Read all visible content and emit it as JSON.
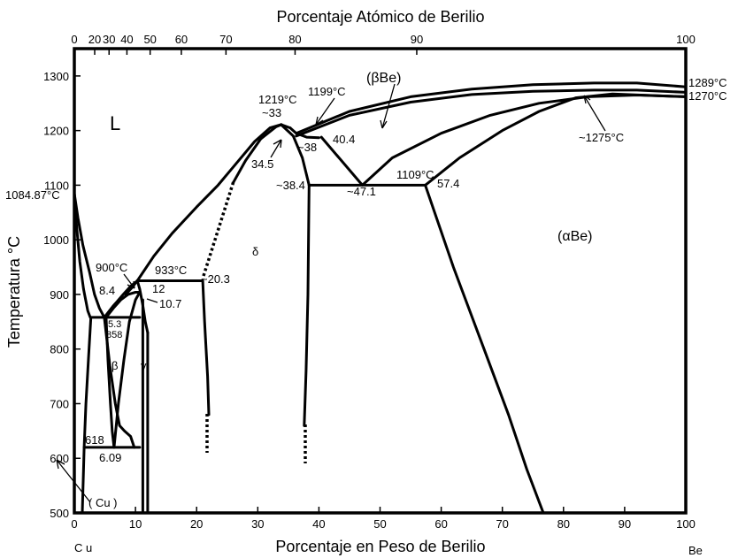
{
  "chart_data": {
    "type": "line",
    "title": "",
    "top_axis": {
      "label": "Porcentaje Atómico de Berilio",
      "ticks": [
        {
          "label": "0",
          "wt": 0
        },
        {
          "label": "20",
          "wt": 3.33
        },
        {
          "label": "30",
          "wt": 5.68
        },
        {
          "label": "40",
          "wt": 8.6
        },
        {
          "label": "50",
          "wt": 12.4
        },
        {
          "label": "60",
          "wt": 17.5
        },
        {
          "label": "70",
          "wt": 24.8
        },
        {
          "label": "80",
          "wt": 36.1
        },
        {
          "label": "90",
          "wt": 56.0
        },
        {
          "label": "100",
          "wt": 100
        }
      ]
    },
    "x_axis": {
      "label": "Porcentaje en Peso de Berilio",
      "range": [
        0,
        100
      ],
      "ticks": [
        "0",
        "10",
        "20",
        "30",
        "40",
        "50",
        "60",
        "70",
        "80",
        "90",
        "100"
      ],
      "left_end": "C u",
      "right_end": "Be"
    },
    "y_axis": {
      "label": "Temperatura °C",
      "range": [
        500,
        1350
      ],
      "ticks": [
        "500",
        "600",
        "700",
        "800",
        "900",
        "1000",
        "1100",
        "1200",
        "1300"
      ]
    },
    "series": [
      {
        "x": [
          0,
          0.6,
          1.4,
          2.5,
          3.3,
          4.1,
          4.9
        ],
        "y": [
          1084.87,
          1040,
          990,
          940,
          900,
          875,
          858
        ]
      },
      {
        "x": [
          0,
          0.4,
          0.9,
          1.5,
          2.2,
          2.6
        ],
        "y": [
          1084.87,
          1020,
          960,
          910,
          870,
          858
        ]
      },
      {
        "x": [
          2.7,
          2.3,
          1.9,
          1.6,
          1.3
        ],
        "y": [
          858,
          780,
          700,
          620,
          500
        ]
      },
      {
        "x": [
          4.9,
          5.8,
          6.7,
          7.4,
          8.2,
          9.2,
          9.8
        ],
        "y": [
          858,
          770,
          700,
          660,
          650,
          640,
          620
        ]
      },
      {
        "x": [
          5.2,
          5.5,
          5.9,
          6.2,
          6.5
        ],
        "y": [
          858,
          780,
          700,
          650,
          620
        ]
      },
      {
        "x": [
          6.5,
          7.2,
          8.1,
          9.0,
          10.0,
          10.7
        ],
        "y": [
          620,
          700,
          780,
          850,
          890,
          904
        ]
      },
      {
        "x": [
          5.2,
          6.4,
          7.6,
          8.8,
          10.0,
          10.7
        ],
        "y": [
          858,
          875,
          890,
          900,
          904,
          904
        ]
      },
      {
        "x": [
          8.4,
          9.4,
          10.3
        ],
        "y": [
          900,
          912,
          925
        ]
      },
      {
        "x": [
          10.3,
          10.7,
          11.2,
          11.6,
          12.0
        ],
        "y": [
          925,
          910,
          880,
          850,
          830
        ]
      },
      {
        "x": [
          11.2,
          11.2
        ],
        "y": [
          890,
          500
        ]
      },
      {
        "x": [
          12.0,
          12.0
        ],
        "y": [
          830,
          500
        ]
      },
      {
        "x": [
          10.3,
          13.0,
          16.0,
          20.0,
          23.5,
          26.5,
          29.5,
          32.0,
          33.8,
          35.3
        ],
        "y": [
          925,
          970,
          1012,
          1060,
          1100,
          1140,
          1180,
          1205,
          1211,
          1205
        ]
      },
      {
        "x": [
          26.0,
          28.0,
          30.5,
          33.0,
          33.9
        ],
        "y": [
          1105,
          1145,
          1185,
          1207,
          1211
        ]
      },
      {
        "x": [
          33.8,
          35.8,
          37.3,
          38.4
        ],
        "y": [
          1211,
          1190,
          1150,
          1100
        ]
      },
      {
        "x": [
          38.4,
          38.2,
          37.9,
          37.6
        ],
        "y": [
          1100,
          900,
          760,
          660
        ]
      },
      {
        "x": [
          35.3,
          36.3,
          38.0,
          40.0
        ],
        "y": [
          1205,
          1195,
          1188,
          1187
        ]
      },
      {
        "x": [
          36.3,
          45,
          55,
          65,
          75,
          85,
          92,
          100
        ],
        "y": [
          1195,
          1235,
          1262,
          1276,
          1284,
          1287,
          1287,
          1280
        ]
      },
      {
        "x": [
          36.3,
          45,
          55,
          65,
          75,
          85,
          92,
          100
        ],
        "y": [
          1190,
          1228,
          1252,
          1266,
          1272,
          1274,
          1274,
          1270
        ]
      },
      {
        "x": [
          47.1,
          52,
          60,
          68,
          76,
          84,
          92,
          100
        ],
        "y": [
          1100,
          1150,
          1195,
          1228,
          1250,
          1262,
          1265,
          1262
        ]
      },
      {
        "x": [
          57.4,
          63,
          70,
          76,
          82,
          88,
          100
        ],
        "y": [
          1100,
          1150,
          1200,
          1235,
          1260,
          1267,
          1262
        ]
      },
      {
        "x": [
          57.4,
          62,
          67,
          71,
          74,
          76.7
        ],
        "y": [
          1100,
          950,
          800,
          680,
          580,
          500
        ]
      },
      {
        "x": [
          40.4,
          47.1
        ],
        "y": [
          1188,
          1100
        ]
      },
      {
        "x": [
          38.4,
          57.4
        ],
        "y": [
          1100,
          1100
        ]
      },
      {
        "x": [
          4.9,
          5.6,
          6.3,
          7.0,
          8.0,
          9.2,
          10.3
        ],
        "y": [
          858,
          868,
          878,
          887,
          900,
          915,
          925
        ]
      },
      {
        "x": [
          10.3,
          21.0
        ],
        "y": [
          925,
          925
        ]
      },
      {
        "x": [
          21.0,
          21.3,
          21.8,
          22.0
        ],
        "y": [
          925,
          850,
          750,
          680
        ]
      },
      {
        "x": [
          2.7,
          10.7
        ],
        "y": [
          858,
          858
        ]
      },
      {
        "x": [
          1.6,
          10.7
        ],
        "y": [
          620,
          620
        ]
      }
    ],
    "annotations": [
      "L",
      "(βBe)",
      "(αBe)",
      "δ",
      "β",
      "γ",
      "( Cu )",
      "1084.87°C",
      "1219°C",
      "~33",
      "1199°C",
      "34.5",
      "~38",
      "40.4",
      "~38.4",
      "~47.1",
      "1109°C",
      "57.4",
      "1289°C",
      "1270°C",
      "~1275°C",
      "900°C",
      "8.4",
      "933°C",
      "12",
      "10.7",
      "~20.3",
      "5.3",
      "858",
      "618",
      "6.09"
    ]
  },
  "labels": {
    "L": "L",
    "beta_be": "(βBe)",
    "alpha_be": "(αBe)",
    "delta": "δ",
    "beta": "β",
    "gamma": "γ",
    "cu_phase": "( Cu )",
    "t_cu_melt": "1084.87°C",
    "t_1219": "1219°C",
    "c_33": "~33",
    "t_1199": "1199°C",
    "c_345": "34.5",
    "c_38": "~38",
    "c_404": "40.4",
    "c_384": "~38.4",
    "c_471": "~47.1",
    "t_1109": "1109°C",
    "c_574": "57.4",
    "t_1289": "1289°C",
    "t_1270": "1270°C",
    "t_1275": "~1275°C",
    "t_900": "900°C",
    "c_84": "8.4",
    "t_933": "933°C",
    "c_12": "12",
    "c_107": "10.7",
    "c_203": "~20.3",
    "c_53": "5.3",
    "t_858": "858",
    "t_618": "618",
    "c_609": "6.09"
  }
}
